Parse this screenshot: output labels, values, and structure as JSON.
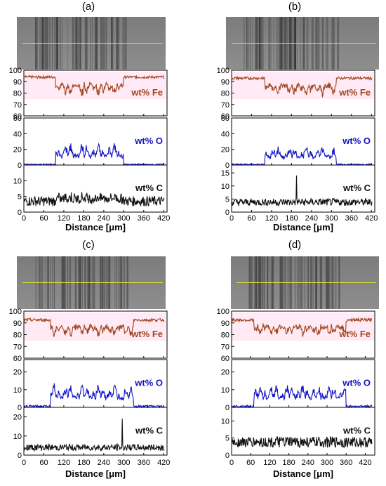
{
  "panels": [
    {
      "label": "(a)",
      "x_axis": {
        "label": "Distance  [μm]",
        "ticks": [
          0,
          60,
          120,
          180,
          240,
          300,
          360,
          420
        ],
        "range": [
          0,
          430
        ]
      },
      "subplots": [
        {
          "name": "wt% Fe",
          "yticks": [
            100,
            90,
            80,
            70,
            60
          ],
          "range": [
            60,
            100
          ],
          "color": "#a0451c",
          "base": 94,
          "noise": 1.2,
          "regions": [
            [
              95,
              300,
              18
            ]
          ]
        },
        {
          "name": "wt% O",
          "yticks": [
            60,
            40,
            20,
            0
          ],
          "range": [
            0,
            60
          ],
          "color": "#1212c8",
          "base": 0.8,
          "noise": 0.8,
          "regions": [
            [
              95,
              300,
              28
            ]
          ]
        },
        {
          "name": "wt% C",
          "yticks": [
            10,
            5,
            0
          ],
          "range": [
            0,
            15
          ],
          "color": "#111111",
          "base": 3.5,
          "noise": 1.6,
          "regions": [
            [
              95,
              300,
              1.8
            ]
          ]
        }
      ]
    },
    {
      "label": "(b)",
      "x_axis": {
        "label": "Distance  [μm]",
        "ticks": [
          0,
          60,
          120,
          180,
          240,
          300,
          360,
          420
        ],
        "range": [
          0,
          430
        ]
      },
      "subplots": [
        {
          "name": "wt% Fe",
          "yticks": [
            100,
            90,
            80,
            70,
            60
          ],
          "range": [
            60,
            100
          ],
          "color": "#a0451c",
          "base": 93,
          "noise": 1.2,
          "regions": [
            [
              100,
              315,
              16
            ]
          ]
        },
        {
          "name": "wt% O",
          "yticks": [
            60,
            40,
            20,
            0
          ],
          "range": [
            0,
            60
          ],
          "color": "#1212c8",
          "base": 0.8,
          "noise": 0.8,
          "regions": [
            [
              100,
              315,
              24
            ]
          ]
        },
        {
          "name": "wt% C",
          "yticks": [
            15,
            10,
            5,
            0
          ],
          "range": [
            0,
            18
          ],
          "color": "#111111",
          "base": 3.8,
          "noise": 1.4,
          "regions": [],
          "spike": [
            195,
            14
          ]
        }
      ]
    },
    {
      "label": "(c)",
      "x_axis": {
        "label": "Distance  [μm]",
        "ticks": [
          0,
          60,
          120,
          180,
          240,
          300,
          360,
          420
        ],
        "range": [
          0,
          430
        ]
      },
      "subplots": [
        {
          "name": "wt% Fe",
          "yticks": [
            100,
            90,
            80,
            70,
            60
          ],
          "range": [
            60,
            100
          ],
          "color": "#a0451c",
          "base": 92.5,
          "noise": 1.3,
          "regions": [
            [
              80,
              330,
              15
            ]
          ]
        },
        {
          "name": "wt% O",
          "yticks": [
            20,
            10,
            0
          ],
          "range": [
            0,
            27
          ],
          "color": "#1212c8",
          "base": 0.6,
          "noise": 0.6,
          "regions": [
            [
              80,
              330,
              13
            ]
          ]
        },
        {
          "name": "wt% C",
          "yticks": [
            20,
            10,
            0
          ],
          "range": [
            0,
            25
          ],
          "color": "#111111",
          "base": 4,
          "noise": 1.7,
          "regions": [],
          "spike": [
            295,
            19
          ]
        }
      ]
    },
    {
      "label": "(d)",
      "x_axis": {
        "label": "Distance  [μm]",
        "ticks": [
          0,
          60,
          120,
          180,
          240,
          300,
          360,
          420
        ],
        "range": [
          0,
          450
        ]
      },
      "subplots": [
        {
          "name": "wt% Fe",
          "yticks": [
            100,
            90,
            80,
            70,
            60
          ],
          "range": [
            60,
            100
          ],
          "color": "#a0451c",
          "base": 92.5,
          "noise": 1.3,
          "regions": [
            [
              70,
              360,
              14
            ]
          ]
        },
        {
          "name": "wt% O",
          "yticks": [
            20,
            10,
            0
          ],
          "range": [
            0,
            27
          ],
          "color": "#1212c8",
          "base": 0.6,
          "noise": 0.6,
          "regions": [
            [
              70,
              360,
              13
            ]
          ]
        },
        {
          "name": "wt% C",
          "yticks": [
            10,
            5,
            0
          ],
          "range": [
            0,
            14
          ],
          "color": "#111111",
          "base": 3.8,
          "noise": 1.6,
          "regions": []
        }
      ]
    }
  ]
}
